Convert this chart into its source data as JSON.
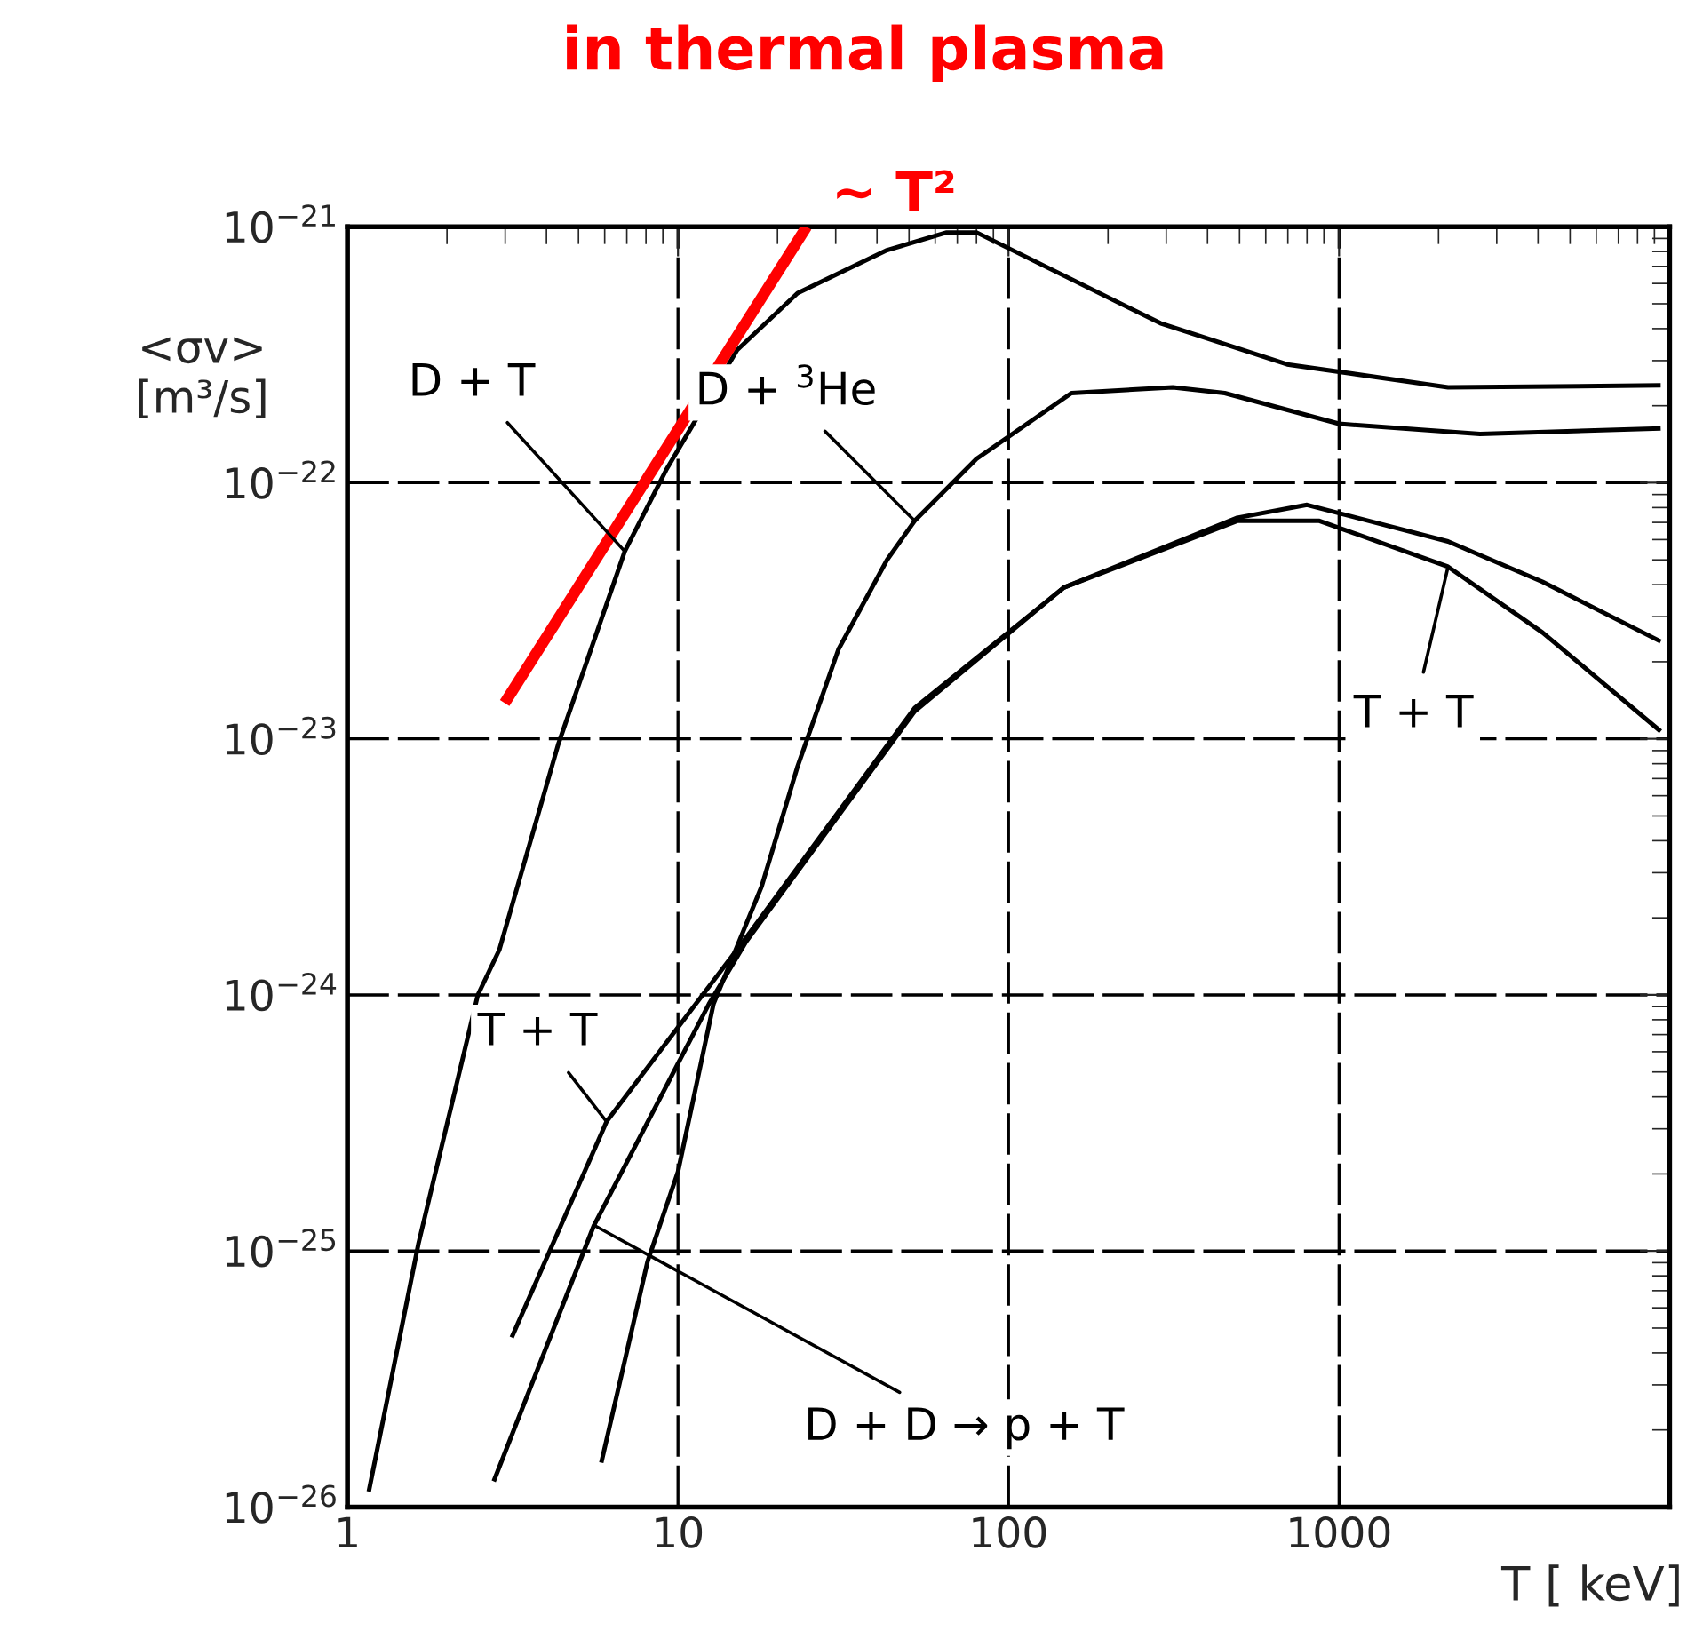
{
  "chart_data": {
    "type": "line",
    "title": "in thermal plasma",
    "xlabel": "T [ keV]",
    "ylabel": "<σv>\n[m³/s]",
    "log": "xy",
    "xlim": [
      1,
      10000
    ],
    "ylim": [
      1e-26,
      1e-21
    ],
    "xticks": [
      1,
      10,
      100,
      1000
    ],
    "yticks": [
      {
        "value": 1e-26,
        "label": "10$^{−26}$"
      },
      {
        "value": 1e-25,
        "label": "10$^{−25}$"
      },
      {
        "value": 1e-24,
        "label": "10$^{−24}$"
      },
      {
        "value": 1e-23,
        "label": "10$^{−23}$"
      },
      {
        "value": 1e-22,
        "label": "10$^{−22}$"
      },
      {
        "value": 1e-21,
        "label": "10$^{−21}$"
      }
    ],
    "grid": true,
    "legend": false,
    "marker": "none",
    "line_style": "solid",
    "series": [
      {
        "color": "#000000",
        "x": [
          1.16,
          1.64,
          2.48,
          2.88,
          4.34,
          6.9,
          9.2,
          15.1,
          23,
          42.9,
          65,
          80,
          288,
          697,
          2137,
          9400
        ],
        "values": [
          1.15e-26,
          1.07e-25,
          1e-24,
          1.5e-24,
          9.5e-24,
          5.4e-23,
          1.12e-22,
          3.3e-22,
          5.5e-22,
          8.1e-22,
          9.5e-22,
          9.5e-22,
          4.2e-22,
          2.9e-22,
          2.36e-22,
          2.4e-22
        ]
      },
      {
        "color": "#000000",
        "x": [
          5.86,
          8.09,
          10,
          12.8,
          17.9,
          23,
          30.6,
          42.9,
          52,
          80,
          155,
          314,
          451,
          1000,
          2670,
          9400
        ],
        "values": [
          1.49e-26,
          9.1e-26,
          2.04e-25,
          9.2e-25,
          2.65e-24,
          7.8e-24,
          2.24e-23,
          5e-23,
          7.1e-23,
          1.24e-22,
          2.24e-22,
          2.36e-22,
          2.24e-22,
          1.7e-22,
          1.55e-22,
          1.63e-22
        ]
      },
      {
        "color": "#000000",
        "x": [
          3.14,
          6.08,
          11.3,
          16,
          52,
          147,
          492,
          872,
          2137,
          4130,
          9400
        ],
        "values": [
          4.6e-26,
          3.2e-25,
          9.2e-25,
          1.66e-24,
          1.32e-23,
          3.9e-23,
          7.1e-23,
          7.1e-23,
          4.7e-23,
          2.6e-23,
          1.07e-23
        ]
      },
      {
        "color": "#000000",
        "x": [
          2.77,
          5.57,
          12.4,
          16,
          52,
          147,
          492,
          800,
          2137,
          4130,
          9400
        ],
        "values": [
          1.26e-26,
          1.26e-25,
          9.2e-25,
          1.6e-24,
          1.28e-23,
          3.9e-23,
          7.3e-23,
          8.2e-23,
          5.9e-23,
          4.1e-23,
          2.4e-23
        ]
      },
      {
        "color": "#ff0000",
        "x": [
          2.99,
          24.5
        ],
        "values": [
          1.38e-23,
          1e-21
        ]
      }
    ],
    "annotations": [
      {
        "text": "~ T²",
        "x": 24.5,
        "y": 1e-21
      },
      {
        "text": "D + T",
        "x": 6.9,
        "y": 5.4e-23
      },
      {
        "text": "D + $^{3}$He",
        "x": 52,
        "y": 7.1e-23
      },
      {
        "text": "T + T",
        "x": 6.08,
        "y": 3.2e-25
      },
      {
        "text": "D + D → p + T",
        "x": 5.57,
        "y": 1.26e-25
      },
      {
        "text": "T + T",
        "x": 2137,
        "y": 4.7e-23
      }
    ]
  }
}
